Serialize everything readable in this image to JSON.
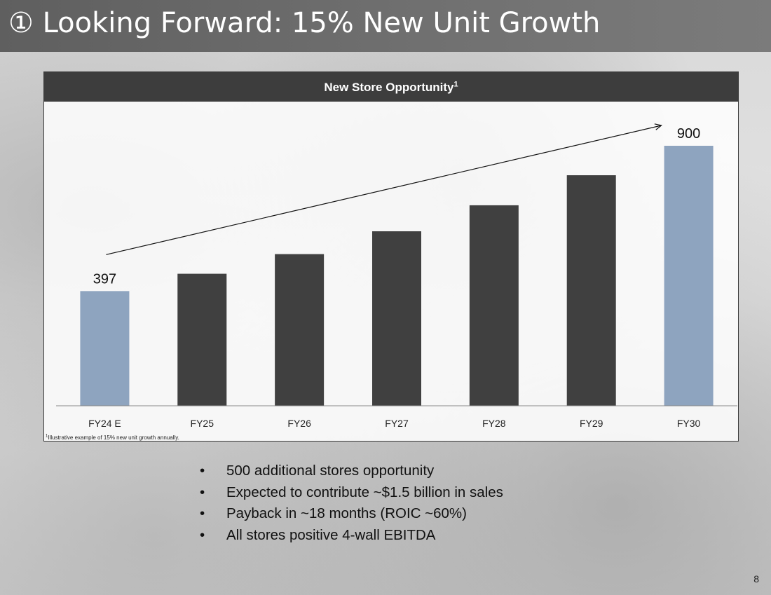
{
  "slide": {
    "title": "① Looking Forward: 15% New Unit Growth",
    "page_number": "8"
  },
  "chart_header": {
    "title": "New Store Opportunity",
    "superscript": "1"
  },
  "chart_data": {
    "type": "bar",
    "title": "New Store Opportunity",
    "categories": [
      "FY24 E",
      "FY25",
      "FY26",
      "FY27",
      "FY28",
      "FY29",
      "FY30"
    ],
    "values": [
      397,
      457,
      525,
      604,
      694,
      798,
      900
    ],
    "data_labels": [
      "397",
      "",
      "",
      "",
      "",
      "",
      "900"
    ],
    "highlight_indices": [
      0,
      6
    ],
    "colors": {
      "default": "#404040",
      "highlight": "#8ea4bf"
    },
    "ylim": [
      0,
      900
    ],
    "xlabel": "",
    "ylabel": "",
    "grid": false,
    "trend_arrow": true
  },
  "footnote": {
    "marker": "1",
    "text": "Illustrative example of 15% new unit growth annually."
  },
  "bullets": {
    "marker": "•",
    "items": [
      "500 additional stores opportunity",
      "Expected to contribute ~$1.5 billion in sales",
      "Payback in ~18 months (ROIC ~60%)",
      "All stores positive 4-wall EBITDA"
    ]
  }
}
